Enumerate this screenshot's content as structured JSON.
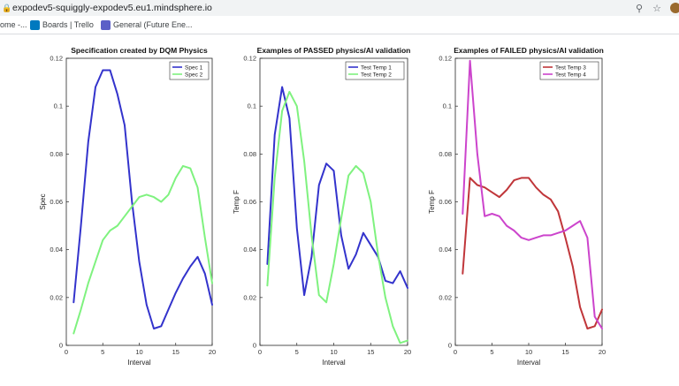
{
  "browser": {
    "url": "expodev5-squiggly-expodev5.eu1.mindsphere.io"
  },
  "bookmarks": [
    {
      "label": "ome -..."
    },
    {
      "label": "Boards | Trello"
    },
    {
      "label": "General (Future Ene..."
    }
  ],
  "colors": {
    "blue": "#3333cc",
    "green": "#7ff27f",
    "red": "#c0363a",
    "magenta": "#cc44cc"
  },
  "chart_data": [
    {
      "type": "line",
      "title": "Specification created by DQM Physics",
      "xlabel": "Interval",
      "ylabel": "Spec",
      "xlim": [
        0,
        20
      ],
      "ylim": [
        0,
        0.12
      ],
      "xticks": [
        "0",
        "5",
        "10",
        "15",
        "20"
      ],
      "yticks": [
        "0",
        "0.02",
        "0.04",
        "0.06",
        "0.08",
        "0.1",
        "0.12"
      ],
      "legend": "top-right",
      "series": [
        {
          "name": "Spec 1",
          "color": "#3333cc",
          "x": [
            1,
            2,
            3,
            4,
            5,
            6,
            7,
            8,
            9,
            10,
            11,
            12,
            13,
            14,
            15,
            16,
            17,
            18,
            19,
            20
          ],
          "y": [
            0.018,
            0.05,
            0.085,
            0.108,
            0.115,
            0.115,
            0.105,
            0.092,
            0.06,
            0.035,
            0.017,
            0.007,
            0.008,
            0.015,
            0.022,
            0.028,
            0.033,
            0.037,
            0.03,
            0.017
          ]
        },
        {
          "name": "Spec 2",
          "color": "#7ff27f",
          "x": [
            1,
            2,
            3,
            4,
            5,
            6,
            7,
            8,
            9,
            10,
            11,
            12,
            13,
            14,
            15,
            16,
            17,
            18,
            19,
            20
          ],
          "y": [
            0.005,
            0.015,
            0.026,
            0.035,
            0.044,
            0.048,
            0.05,
            0.054,
            0.058,
            0.062,
            0.063,
            0.062,
            0.06,
            0.063,
            0.07,
            0.075,
            0.074,
            0.066,
            0.045,
            0.026
          ]
        }
      ]
    },
    {
      "type": "line",
      "title": "Examples of PASSED physics/AI validation",
      "xlabel": "Interval",
      "ylabel": "Temp F",
      "xlim": [
        0,
        20
      ],
      "ylim": [
        0,
        0.12
      ],
      "xticks": [
        "0",
        "5",
        "10",
        "15",
        "20"
      ],
      "yticks": [
        "0",
        "0.02",
        "0.04",
        "0.06",
        "0.08",
        "0.1",
        "0.12"
      ],
      "legend": "top-right",
      "series": [
        {
          "name": "Test Temp 1",
          "color": "#3333cc",
          "x": [
            1,
            2,
            3,
            4,
            5,
            6,
            7,
            8,
            9,
            10,
            11,
            12,
            13,
            14,
            15,
            16,
            17,
            18,
            19,
            20
          ],
          "y": [
            0.034,
            0.088,
            0.108,
            0.095,
            0.049,
            0.021,
            0.037,
            0.067,
            0.076,
            0.073,
            0.046,
            0.032,
            0.038,
            0.047,
            0.042,
            0.037,
            0.027,
            0.026,
            0.031,
            0.024
          ]
        },
        {
          "name": "Test Temp 2",
          "color": "#7ff27f",
          "x": [
            1,
            2,
            3,
            4,
            5,
            6,
            7,
            8,
            9,
            10,
            11,
            12,
            13,
            14,
            15,
            16,
            17,
            18,
            19,
            20
          ],
          "y": [
            0.025,
            0.07,
            0.098,
            0.106,
            0.1,
            0.077,
            0.046,
            0.021,
            0.018,
            0.034,
            0.053,
            0.071,
            0.075,
            0.072,
            0.06,
            0.038,
            0.02,
            0.008,
            0.001,
            0.002
          ]
        }
      ]
    },
    {
      "type": "line",
      "title": "Examples of FAILED physics/AI validation",
      "xlabel": "Interval",
      "ylabel": "Temp F",
      "xlim": [
        0,
        20
      ],
      "ylim": [
        0,
        0.12
      ],
      "xticks": [
        "0",
        "5",
        "10",
        "15",
        "20"
      ],
      "yticks": [
        "0",
        "0.02",
        "0.04",
        "0.06",
        "0.08",
        "0.1",
        "0.12"
      ],
      "legend": "top-right",
      "series": [
        {
          "name": "Test Temp 3",
          "color": "#c0363a",
          "x": [
            1,
            2,
            3,
            4,
            5,
            6,
            7,
            8,
            9,
            10,
            11,
            12,
            13,
            14,
            15,
            16,
            17,
            18,
            19,
            20
          ],
          "y": [
            0.03,
            0.07,
            0.067,
            0.066,
            0.064,
            0.062,
            0.065,
            0.069,
            0.07,
            0.07,
            0.066,
            0.063,
            0.061,
            0.056,
            0.045,
            0.033,
            0.016,
            0.007,
            0.008,
            0.015
          ]
        },
        {
          "name": "Test Temp 4",
          "color": "#cc44cc",
          "x": [
            1,
            2,
            3,
            4,
            5,
            6,
            7,
            8,
            9,
            10,
            11,
            12,
            13,
            14,
            15,
            16,
            17,
            18,
            19,
            20
          ],
          "y": [
            0.055,
            0.119,
            0.08,
            0.054,
            0.055,
            0.054,
            0.05,
            0.048,
            0.045,
            0.044,
            0.045,
            0.046,
            0.046,
            0.047,
            0.048,
            0.05,
            0.052,
            0.045,
            0.012,
            0.007
          ]
        }
      ]
    }
  ]
}
